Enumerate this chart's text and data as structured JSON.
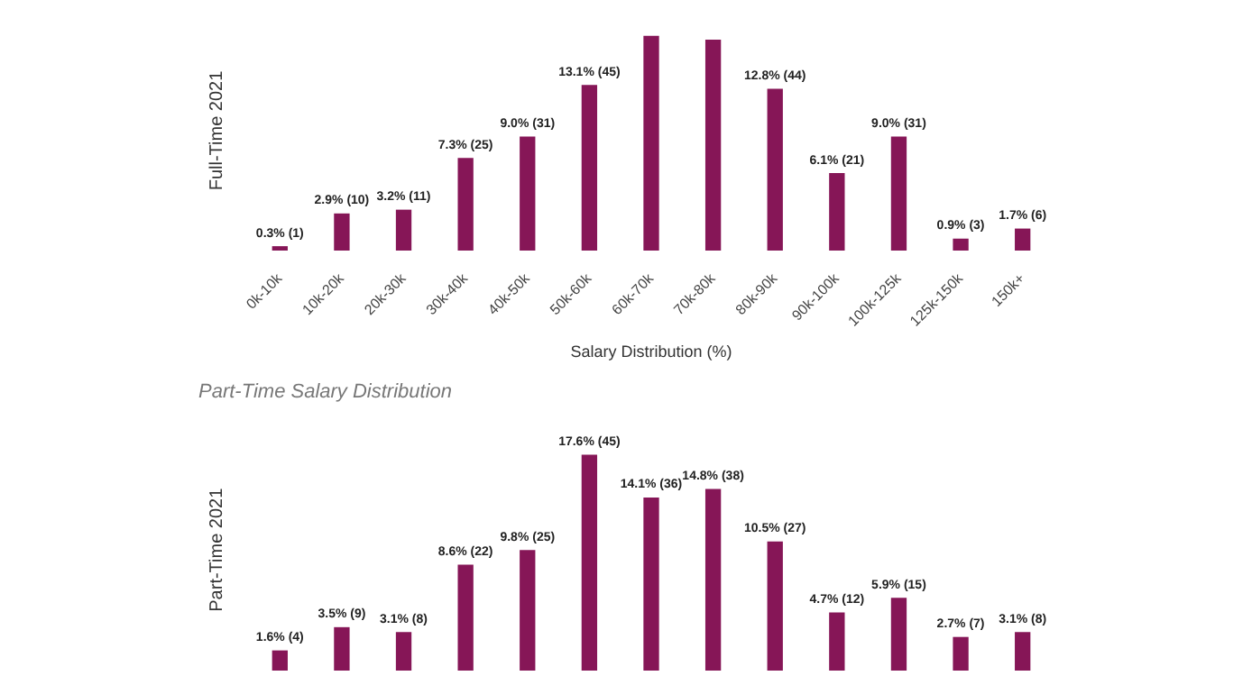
{
  "chart_data": [
    {
      "type": "bar",
      "ylabel": "Full-Time 2021",
      "xlabel": "Salary Distribution (%)",
      "categories": [
        "0k-10k",
        "10k-20k",
        "20k-30k",
        "30k-40k",
        "40k-50k",
        "50k-60k",
        "60k-70k",
        "70k-80k",
        "80k-90k",
        "90k-100k",
        "100k-125k",
        "125k-150k",
        "150k+"
      ],
      "color": "#861657",
      "values": [
        0.3,
        2.9,
        3.2,
        7.3,
        9.0,
        13.1,
        17.0,
        16.7,
        12.8,
        6.1,
        9.0,
        0.9,
        1.7
      ],
      "value_labels": [
        "0.3% (1)",
        "2.9% (10)",
        "3.2% (11)",
        "7.3% (25)",
        "9.0% (31)",
        "13.1% (45)",
        null,
        null,
        "12.8% (44)",
        "6.1% (21)",
        "9.0% (31)",
        "0.9% (3)",
        "1.7% (6)"
      ]
    },
    {
      "type": "bar",
      "title": "Part-Time Salary Distribution",
      "ylabel": "Part-Time 2021",
      "categories": [
        null,
        null,
        null,
        null,
        null,
        null,
        null,
        null,
        null,
        null,
        null,
        null,
        null
      ],
      "color": "#861657",
      "values": [
        1.6,
        3.5,
        3.1,
        8.6,
        9.8,
        17.6,
        14.1,
        14.8,
        10.5,
        4.7,
        5.9,
        2.7,
        3.1
      ],
      "value_labels": [
        "1.6% (4)",
        "3.5% (9)",
        "3.1% (8)",
        "8.6% (22)",
        "9.8% (25)",
        "17.6% (45)",
        "14.1% (36)",
        "14.8% (38)",
        "10.5% (27)",
        "4.7% (12)",
        "5.9% (15)",
        "2.7% (7)",
        "3.1% (8)"
      ]
    }
  ]
}
